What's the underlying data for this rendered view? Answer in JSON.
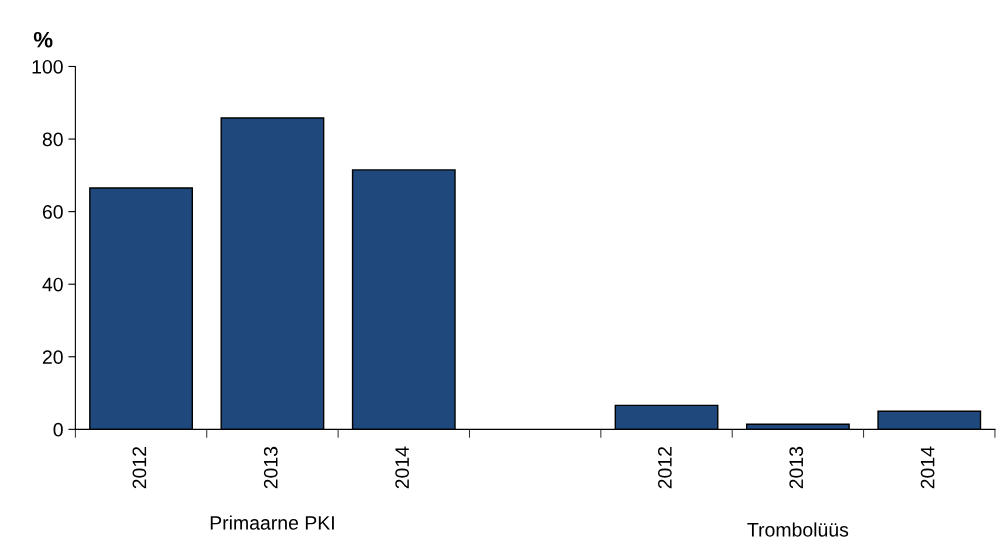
{
  "chart_data": {
    "type": "bar",
    "ylabel": "%",
    "categories": [
      "2012",
      "2013",
      "2014",
      null,
      "2012",
      "2013",
      "2014"
    ],
    "values": [
      66.5,
      85.8,
      71.5,
      null,
      6.6,
      1.4,
      5.0
    ],
    "color": "#1f497d",
    "ylim": [
      0,
      100
    ],
    "yticks": [
      0,
      20,
      40,
      60,
      80,
      100
    ],
    "grid": false,
    "legend": false,
    "annotations": [
      "Primaarne PKI",
      "Trombolüüs"
    ]
  }
}
